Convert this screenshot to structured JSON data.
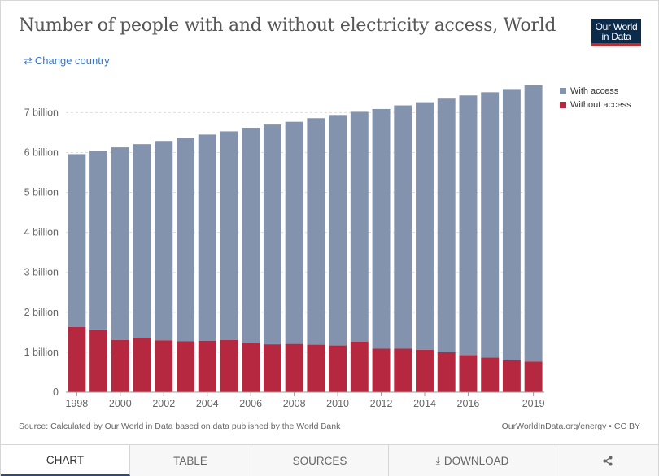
{
  "header": {
    "title": "Number of people with and without electricity access, World",
    "logo_line1": "Our World",
    "logo_line2": "in Data",
    "change_country_label": "Change country",
    "change_country_icon": "swap-arrows-icon"
  },
  "colors": {
    "with_access": "#8393ad",
    "without_access": "#b5283f",
    "grid": "#dddddd",
    "axis": "#666666"
  },
  "footer": {
    "source": "Source: Calculated by Our World in Data based on data published by the World Bank",
    "license": "OurWorldInData.org/energy • CC BY"
  },
  "tabs": [
    {
      "label": "CHART",
      "active": true
    },
    {
      "label": "TABLE",
      "active": false
    },
    {
      "label": "SOURCES",
      "active": false
    },
    {
      "label": "DOWNLOAD",
      "active": false,
      "icon": "download-icon"
    },
    {
      "label": "",
      "active": false,
      "icon": "share-icon"
    }
  ],
  "chart_data": {
    "type": "bar",
    "stacked": true,
    "title": "Number of people with and without electricity access, World",
    "categories": [
      1998,
      1999,
      2000,
      2001,
      2002,
      2003,
      2004,
      2005,
      2006,
      2007,
      2008,
      2009,
      2010,
      2011,
      2012,
      2013,
      2014,
      2015,
      2016,
      2017,
      2018,
      2019
    ],
    "x_tick_labels": [
      "1998",
      "2000",
      "2002",
      "2004",
      "2006",
      "2008",
      "2010",
      "2012",
      "2014",
      "2016",
      "2019"
    ],
    "series": [
      {
        "name": "Without access",
        "values": [
          1.63,
          1.57,
          1.31,
          1.35,
          1.3,
          1.28,
          1.29,
          1.31,
          1.24,
          1.2,
          1.21,
          1.19,
          1.17,
          1.27,
          1.09,
          1.09,
          1.06,
          1.0,
          0.93,
          0.87,
          0.8,
          0.77
        ]
      },
      {
        "name": "With access",
        "values": [
          4.33,
          4.48,
          4.82,
          4.86,
          4.99,
          5.09,
          5.16,
          5.22,
          5.38,
          5.5,
          5.56,
          5.67,
          5.77,
          5.75,
          6.0,
          6.09,
          6.2,
          6.35,
          6.5,
          6.64,
          6.79,
          6.91
        ]
      }
    ],
    "y_unit": "billion",
    "y_ticks": [
      "0",
      "1 billion",
      "2 billion",
      "3 billion",
      "4 billion",
      "5 billion",
      "6 billion",
      "7 billion"
    ],
    "ylim": [
      0,
      7.68
    ],
    "grid": true,
    "legend": {
      "placement": "top-right",
      "items": [
        "With access",
        "Without access"
      ]
    }
  }
}
